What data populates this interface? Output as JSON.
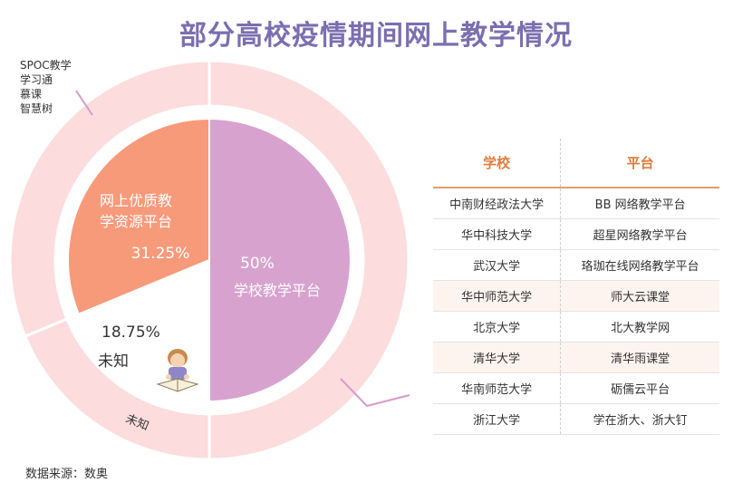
{
  "title": "部分高校疫情期间网上教学情况",
  "colors": {
    "title": "#7b6fb0",
    "outer_ring": "#fcdcdc",
    "school": "#d8a2cf",
    "resource": "#f79a7a",
    "unknown": "#ffffff",
    "header": "#e07b39"
  },
  "outer_legend": [
    "SPOC教学",
    "学习通",
    "慕课",
    "智慧树"
  ],
  "chart_data": {
    "type": "pie",
    "inner": {
      "slices": [
        {
          "label": "学校教学平台",
          "value": 50,
          "value_label": "50%"
        },
        {
          "label": "网上优质教学资源平台",
          "label_lines": [
            "网上优质教",
            "学资源平台"
          ],
          "value": 31.25,
          "value_label": "31.25%"
        },
        {
          "label": "未知",
          "value": 18.75,
          "value_label": "18.75%"
        }
      ]
    },
    "outer": {
      "slices": [
        {
          "label": "SPOC教学/学习通/慕课/智慧树",
          "value": 31.25
        },
        {
          "label": "学校教学平台",
          "value": 50
        },
        {
          "label": "未知",
          "value": 18.75
        }
      ],
      "unknown_label": "未知"
    }
  },
  "table": {
    "headers": [
      "学校",
      "平台"
    ],
    "rows": [
      [
        "中南财经政法大学",
        "BB 网络教学平台"
      ],
      [
        "华中科技大学",
        "超星网络教学平台"
      ],
      [
        "武汉大学",
        "珞珈在线网络教学平台"
      ],
      [
        "华中师范大学",
        "师大云课堂"
      ],
      [
        "北京大学",
        "北大教学网"
      ],
      [
        "清华大学",
        "清华雨课堂"
      ],
      [
        "华南师范大学",
        "砺儒云平台"
      ],
      [
        "浙江大学",
        "学在浙大、浙大钉"
      ]
    ]
  },
  "source": "数据来源：数奥"
}
